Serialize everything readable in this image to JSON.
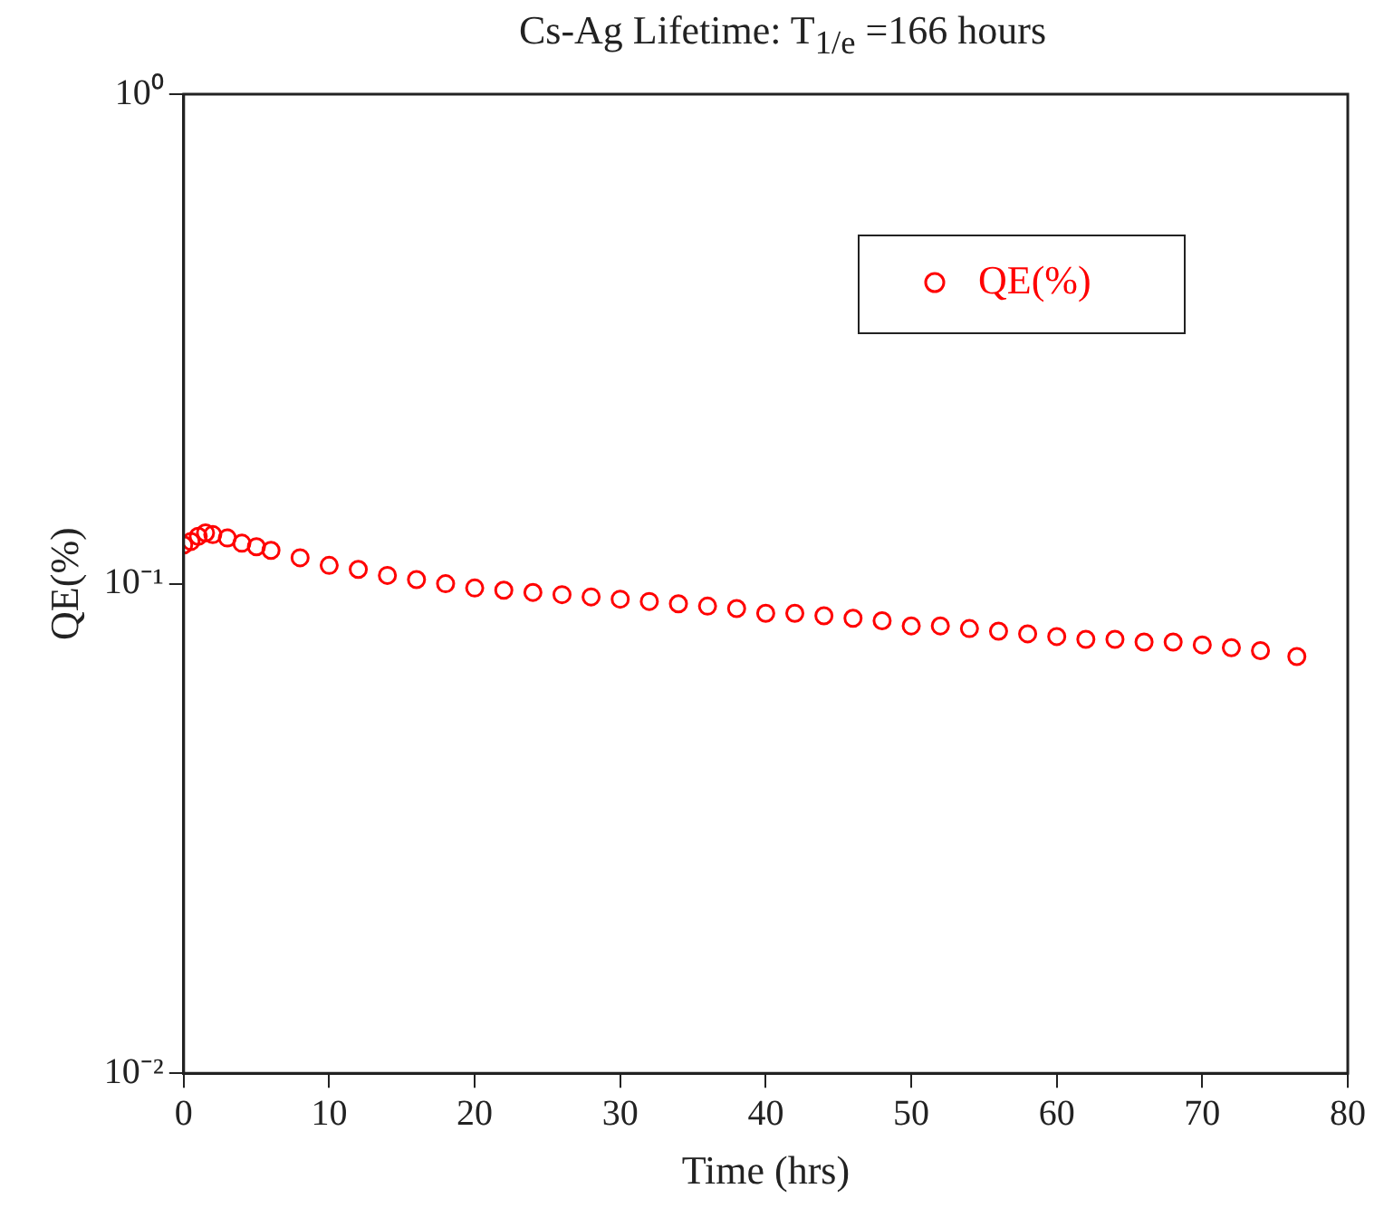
{
  "chart_data": {
    "type": "scatter",
    "title": "Cs-Ag Lifetime: T$_{1/e}$ =166 hours",
    "xlabel": "Time (hrs)",
    "ylabel": "QE(%)",
    "series": [
      {
        "name": "QE(%)",
        "color": "#ff0000",
        "x": [
          0,
          0.5,
          1,
          1.5,
          2,
          3,
          4,
          5,
          6,
          8,
          10,
          12,
          14,
          16,
          18,
          20,
          22,
          24,
          26,
          28,
          30,
          32,
          34,
          36,
          38,
          40,
          42,
          44,
          46,
          48,
          50,
          52,
          54,
          56,
          58,
          60,
          62,
          64,
          66,
          68,
          70,
          72,
          74,
          76.5
        ],
        "values": [
          0.12,
          0.122,
          0.125,
          0.127,
          0.126,
          0.124,
          0.121,
          0.119,
          0.117,
          0.113,
          0.109,
          0.107,
          0.104,
          0.102,
          0.1,
          0.098,
          0.097,
          0.096,
          0.095,
          0.094,
          0.093,
          0.092,
          0.091,
          0.09,
          0.089,
          0.087,
          0.087,
          0.086,
          0.085,
          0.084,
          0.082,
          0.082,
          0.081,
          0.08,
          0.079,
          0.078,
          0.077,
          0.077,
          0.076,
          0.076,
          0.075,
          0.074,
          0.073,
          0.071
        ]
      }
    ],
    "xlim": [
      0,
      80
    ],
    "xticks": [
      0,
      10,
      20,
      30,
      40,
      50,
      60,
      70,
      80
    ],
    "ylim": [
      0.01,
      1
    ],
    "yticks": [
      {
        "value": 0.01,
        "label": "10⁻²"
      },
      {
        "value": 0.1,
        "label": "10⁻¹"
      },
      {
        "value": 1,
        "label": "10⁰"
      }
    ],
    "log": "y",
    "grid": false,
    "legend": "top right",
    "marker": "circle"
  }
}
